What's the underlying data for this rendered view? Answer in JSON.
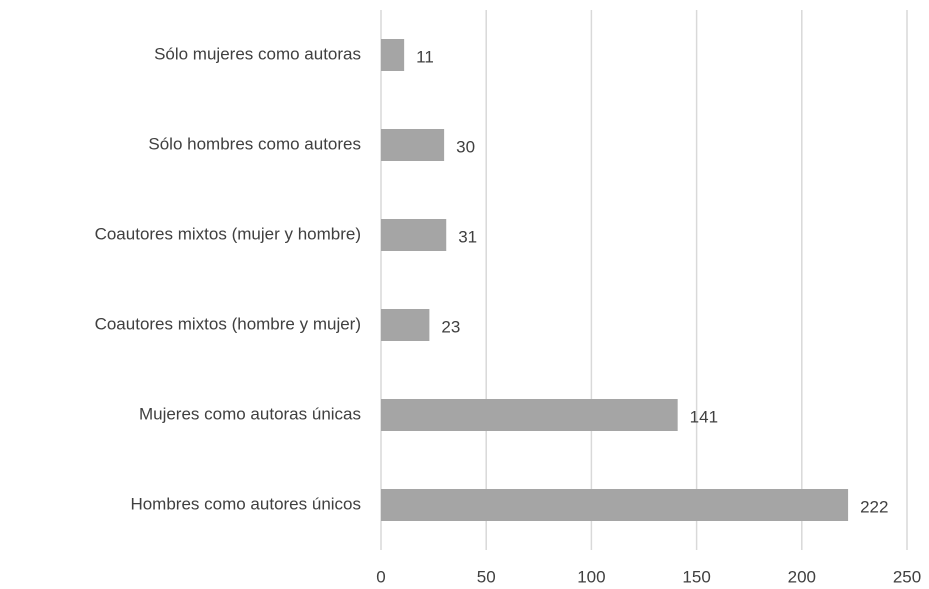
{
  "chart_data": {
    "type": "hbar",
    "categories": [
      "Sólo mujeres como autoras",
      "Sólo hombres como autores",
      "Coautores mixtos (mujer y hombre)",
      "Coautores mixtos (hombre y mujer)",
      "Mujeres como autoras únicas",
      "Hombres como autores únicos"
    ],
    "values": [
      11,
      30,
      31,
      23,
      141,
      222
    ],
    "color": "#a5a5a5",
    "xlim": [
      0,
      250
    ],
    "xticks": [
      0,
      50,
      100,
      150,
      200,
      250
    ],
    "grid": true
  }
}
